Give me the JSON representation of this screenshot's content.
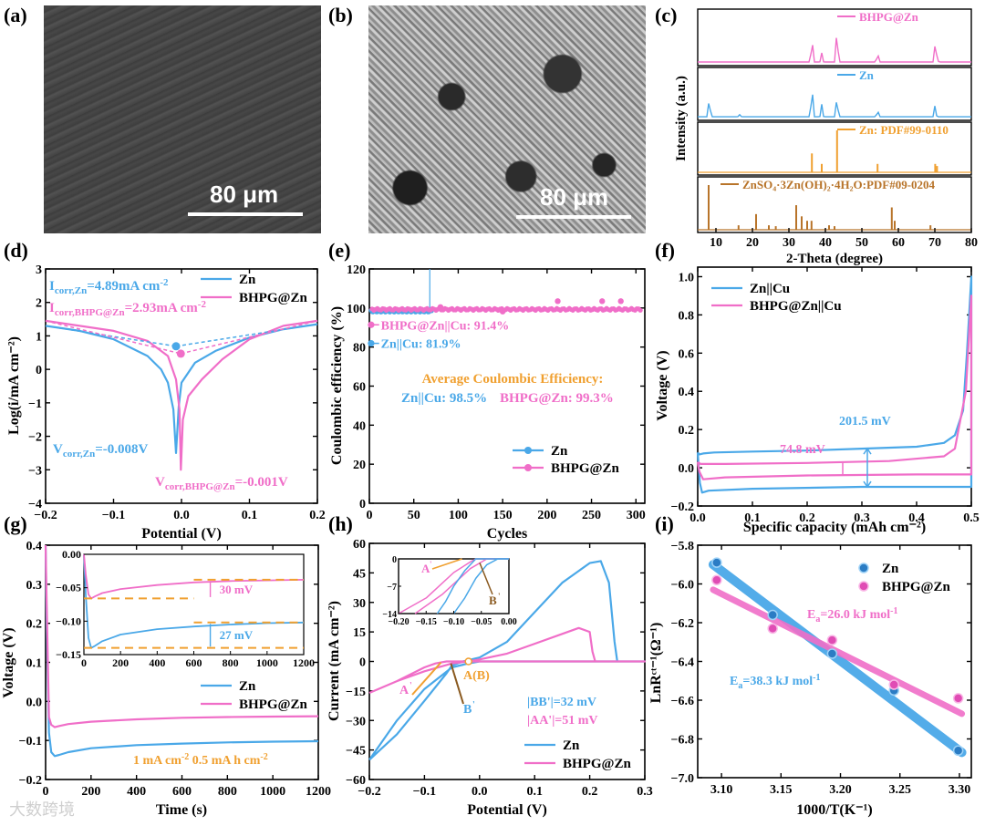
{
  "panels": {
    "a": "(a)",
    "b": "(b)",
    "c": "(c)",
    "d": "(d)",
    "e": "(e)",
    "f": "(f)",
    "g": "(g)",
    "h": "(h)",
    "i": "(i)"
  },
  "sem": {
    "scale_a": "80 μm",
    "scale_b": "80 μm"
  },
  "watermark": "大数跨境",
  "colors": {
    "zn": "#4aa8e8",
    "bhpg": "#f06ec8",
    "orange": "#f0a030",
    "brown": "#b8742a"
  },
  "chart_data": [
    {
      "id": "c",
      "type": "line",
      "xlabel": "2-Theta (degree)",
      "ylabel": "Intensity (a.u.)",
      "xlim": [
        5,
        80
      ],
      "xticks": [
        10,
        20,
        30,
        40,
        50,
        60,
        70,
        80
      ],
      "series": [
        {
          "name": "BHPG@Zn",
          "peaks": [
            [
              36.3,
              0.7
            ],
            [
              39.0,
              0.2
            ],
            [
              43.2,
              1.0
            ],
            [
              54.3,
              0.25
            ],
            [
              70.1,
              0.4
            ],
            [
              70.6,
              0.15
            ]
          ]
        },
        {
          "name": "Zn",
          "peaks": [
            [
              8.2,
              0.6
            ],
            [
              16.5,
              0.05
            ],
            [
              36.3,
              1.0
            ],
            [
              39.0,
              0.3
            ],
            [
              43.2,
              0.65
            ],
            [
              54.3,
              0.2
            ],
            [
              70.1,
              0.3
            ]
          ]
        },
        {
          "name": "Zn: PDF#99-0110",
          "peaks": [
            [
              36.3,
              0.45
            ],
            [
              39.0,
              0.2
            ],
            [
              43.2,
              1.0
            ],
            [
              54.3,
              0.2
            ],
            [
              70.1,
              0.2
            ],
            [
              70.6,
              0.15
            ]
          ]
        },
        {
          "name": "ZnSO₄·3Zn(OH)₂·4H₂O:PDF#09-0204",
          "peaks": [
            [
              8.0,
              1.0
            ],
            [
              16.2,
              0.1
            ],
            [
              21.0,
              0.35
            ],
            [
              24.5,
              0.1
            ],
            [
              26.4,
              0.08
            ],
            [
              32.0,
              0.55
            ],
            [
              33.5,
              0.3
            ],
            [
              35.0,
              0.2
            ],
            [
              36.2,
              0.2
            ],
            [
              41.0,
              0.1
            ],
            [
              42.5,
              0.08
            ],
            [
              58.2,
              0.5
            ],
            [
              59.0,
              0.2
            ],
            [
              68.8,
              0.1
            ]
          ]
        }
      ]
    },
    {
      "id": "d",
      "type": "line",
      "xlabel": "Potential (V)",
      "ylabel": "Log(i/mA cm⁻²)",
      "xlim": [
        -0.2,
        0.2
      ],
      "ylim": [
        -4,
        3
      ],
      "xticks": [
        -0.2,
        -0.1,
        0.0,
        0.1,
        0.2
      ],
      "yticks": [
        -4,
        -3,
        -2,
        -1,
        0,
        1,
        2,
        3
      ],
      "legend": [
        "Zn",
        "BHPG@Zn"
      ],
      "legend_placement": "top-right",
      "annotations": [
        "I",
        "corr,Zn",
        "=4.89mA cm",
        "-2",
        "I",
        "corr,BHPG@Zn",
        "=2.93mA cm",
        "-2",
        "V",
        "corr,Zn",
        "=-0.008V",
        "V",
        "corr,BHPG@Zn",
        "=-0.001V"
      ],
      "series": [
        {
          "name": "Zn",
          "x": [
            -0.2,
            -0.15,
            -0.1,
            -0.05,
            -0.03,
            -0.02,
            -0.012,
            -0.008,
            -0.004,
            0.0,
            0.02,
            0.05,
            0.1,
            0.15,
            0.2
          ],
          "y": [
            1.3,
            1.15,
            0.9,
            0.4,
            0.0,
            -0.4,
            -1.2,
            -2.5,
            -1.1,
            -0.4,
            0.2,
            0.55,
            0.95,
            1.2,
            1.35
          ]
        },
        {
          "name": "BHPG@Zn",
          "x": [
            -0.2,
            -0.15,
            -0.1,
            -0.05,
            -0.02,
            -0.008,
            -0.003,
            -0.001,
            0.002,
            0.01,
            0.03,
            0.06,
            0.1,
            0.15,
            0.2
          ],
          "y": [
            1.45,
            1.3,
            1.15,
            0.85,
            0.4,
            -0.3,
            -1.2,
            -3.0,
            -1.5,
            -0.8,
            -0.3,
            0.3,
            0.9,
            1.3,
            1.45
          ]
        }
      ],
      "points": [
        [
          -0.008,
          0.69
        ],
        [
          -0.001,
          0.47
        ]
      ]
    },
    {
      "id": "e",
      "type": "scatter",
      "xlabel": "Cycles",
      "ylabel": "Coulombic efficiency (%)",
      "xlim": [
        0,
        310
      ],
      "ylim": [
        0,
        120
      ],
      "xticks": [
        0,
        50,
        100,
        150,
        200,
        250,
        300
      ],
      "yticks": [
        0,
        20,
        40,
        60,
        80,
        100,
        120
      ],
      "legend": [
        "Zn",
        "BHPG@Zn"
      ],
      "legend_placement": "bottom-right",
      "annotations": [
        "BHPG@Zn||Cu: 91.4%",
        "Zn||Cu: 81.9%",
        "Average Coulombic Efficiency:",
        "Zn||Cu: 98.5%",
        "BHPG@Zn: 99.3%"
      ],
      "series": [
        {
          "name": "Zn",
          "x_range": [
            1,
            70
          ],
          "value": 98.5,
          "first": 81.9,
          "spike": [
            68,
            120
          ]
        },
        {
          "name": "BHPG@Zn",
          "x_range": [
            1,
            305
          ],
          "value": 99.3,
          "first": 91.4
        }
      ]
    },
    {
      "id": "f",
      "type": "line",
      "xlabel": "Specific capacity (mAh cm⁻²)",
      "ylabel": "Voltage (V)",
      "xlim": [
        0,
        0.5
      ],
      "ylim": [
        -0.2,
        1.05
      ],
      "xticks": [
        0.0,
        0.1,
        0.2,
        0.3,
        0.4,
        0.5
      ],
      "yticks": [
        -0.2,
        0.0,
        0.2,
        0.4,
        0.6,
        0.8,
        1.0
      ],
      "legend": [
        "Zn||Cu",
        "BHPG@Zn||Cu"
      ],
      "legend_placement": "top-left",
      "annotations": [
        "201.5 mV",
        "74.8 mV"
      ],
      "series": [
        {
          "name": "Zn||Cu",
          "x": [
            0,
            0.003,
            0.01,
            0.03,
            0.1,
            0.2,
            0.3,
            0.4,
            0.45,
            0.47,
            0.485,
            0.492,
            0.497,
            0.5,
            0.5,
            0.45,
            0.3,
            0.1,
            0.02,
            0.008,
            0.004,
            0.0
          ],
          "y": [
            0.08,
            0.07,
            0.075,
            0.08,
            0.085,
            0.09,
            0.1,
            0.11,
            0.13,
            0.17,
            0.3,
            0.6,
            0.85,
            1.0,
            -0.1,
            -0.1,
            -0.1,
            -0.11,
            -0.12,
            -0.13,
            -0.08,
            0.08
          ]
        },
        {
          "name": "BHPG@Zn||Cu",
          "x": [
            0,
            0.005,
            0.05,
            0.2,
            0.35,
            0.45,
            0.47,
            0.49,
            0.5,
            0.5,
            0.4,
            0.2,
            0.05,
            0.01,
            0.003,
            0.0
          ],
          "y": [
            0.03,
            0.02,
            0.02,
            0.025,
            0.035,
            0.06,
            0.1,
            0.4,
            0.9,
            -0.035,
            -0.035,
            -0.04,
            -0.05,
            -0.06,
            -0.02,
            0.03
          ]
        }
      ]
    },
    {
      "id": "g",
      "type": "line",
      "xlabel": "Time (s)",
      "ylabel": "Voltage (V)",
      "xlim": [
        0,
        1200
      ],
      "ylim": [
        -0.2,
        0.4
      ],
      "xticks": [
        0,
        200,
        400,
        600,
        800,
        1000,
        1200
      ],
      "yticks": [
        -0.2,
        -0.1,
        0.0,
        0.1,
        0.2,
        0.3,
        0.4
      ],
      "legend": [
        "Zn",
        "BHPG@Zn"
      ],
      "legend_placement": "center-right",
      "annotations": [
        "1 mA cm",
        "-2",
        "0.5 mA h cm",
        "-2",
        "30 mV",
        "27 mV"
      ],
      "series": [
        {
          "name": "Zn",
          "x": [
            0,
            5,
            15,
            25,
            40,
            60,
            100,
            200,
            400,
            600,
            800,
            1000,
            1200
          ],
          "y": [
            0.4,
            0.2,
            -0.08,
            -0.13,
            -0.14,
            -0.137,
            -0.13,
            -0.12,
            -0.112,
            -0.108,
            -0.105,
            -0.103,
            -0.102
          ]
        },
        {
          "name": "BHPG@Zn",
          "x": [
            0,
            5,
            15,
            25,
            40,
            60,
            100,
            200,
            400,
            600,
            800,
            1000,
            1200
          ],
          "y": [
            0.4,
            0.25,
            -0.04,
            -0.06,
            -0.066,
            -0.063,
            -0.058,
            -0.052,
            -0.046,
            -0.042,
            -0.04,
            -0.039,
            -0.038
          ]
        }
      ],
      "inset": {
        "xlim": [
          0,
          1200
        ],
        "ylim": [
          -0.15,
          0.0
        ],
        "xticks": [
          0,
          200,
          400,
          600,
          800,
          1000,
          1200
        ],
        "yticks": [
          0.0,
          -0.05,
          -0.1,
          -0.15
        ]
      }
    },
    {
      "id": "h",
      "type": "line",
      "xlabel": "Potential (V)",
      "ylabel": "Current (mA cm⁻²)",
      "xlim": [
        -0.2,
        0.3
      ],
      "ylim": [
        -60,
        60
      ],
      "xticks": [
        -0.2,
        -0.1,
        0.0,
        0.1,
        0.2,
        0.3
      ],
      "yticks": [
        -60,
        -45,
        -30,
        -15,
        0,
        15,
        30,
        45,
        60
      ],
      "legend": [
        "Zn",
        "BHPG@Zn"
      ],
      "legend_placement": "bottom-right",
      "annotations": [
        "A",
        "'",
        "A(B)",
        "B",
        "'",
        "|BB'|=32 mV",
        "|AA'|=51 mV"
      ],
      "series": [
        {
          "name": "Zn",
          "x": [
            -0.2,
            -0.15,
            -0.1,
            -0.06,
            -0.05,
            -0.03,
            0.0,
            0.05,
            0.1,
            0.15,
            0.2,
            0.22,
            0.235,
            0.245,
            0.25,
            0.3,
            0.25,
            0.0,
            -0.02,
            -0.05,
            -0.1,
            -0.15,
            -0.2
          ],
          "y": [
            -50,
            -37,
            -20,
            -6,
            -2,
            0,
            2,
            10,
            25,
            40,
            50,
            51,
            40,
            10,
            0,
            0,
            0,
            0,
            -1,
            -3,
            -14,
            -30,
            -50
          ]
        },
        {
          "name": "BHPG@Zn",
          "x": [
            -0.2,
            -0.15,
            -0.1,
            -0.08,
            -0.06,
            -0.05,
            -0.02,
            0.0,
            0.05,
            0.1,
            0.15,
            0.18,
            0.2,
            0.205,
            0.21,
            0.3,
            0.21,
            0.0,
            -0.02,
            -0.05,
            -0.1,
            -0.15,
            -0.2
          ],
          "y": [
            -16,
            -10,
            -3,
            -1,
            0,
            0,
            0,
            1,
            4,
            9,
            14,
            17,
            15,
            5,
            0,
            0,
            0,
            0,
            0,
            -1,
            -5,
            -10,
            -16
          ]
        }
      ],
      "inset": {
        "xlim": [
          -0.2,
          0.0
        ],
        "ylim": [
          -14,
          0
        ],
        "xticks": [
          -0.2,
          -0.15,
          -0.1,
          -0.05,
          0.0
        ],
        "yticks": [
          0,
          -7,
          -14
        ],
        "labels": [
          "A",
          "'",
          "B",
          "'"
        ]
      }
    },
    {
      "id": "i",
      "type": "scatter",
      "xlabel": "1000/T(K⁻¹)",
      "ylabel": "LnRᶜᵗ⁻¹(Ω⁻¹)",
      "xlim": [
        3.08,
        3.31
      ],
      "ylim": [
        -7.0,
        -5.8
      ],
      "xticks": [
        3.1,
        3.15,
        3.2,
        3.25,
        3.3
      ],
      "yticks": [
        -5.8,
        -6.0,
        -6.2,
        -6.4,
        -6.6,
        -6.8,
        -7.0
      ],
      "legend": [
        "Zn",
        "BHPG@Zn"
      ],
      "legend_placement": "top-right",
      "annotations": [
        "E",
        "a",
        "=26.0 kJ mol",
        "-1",
        "E",
        "a",
        "=38.3 kJ mol",
        "-1"
      ],
      "series": [
        {
          "name": "Zn",
          "x": [
            3.096,
            3.143,
            3.193,
            3.245,
            3.299
          ],
          "y": [
            -5.89,
            -6.16,
            -6.36,
            -6.55,
            -6.86
          ],
          "fit": [
            [
              3.093,
              -5.9
            ],
            [
              3.302,
              -6.87
            ]
          ]
        },
        {
          "name": "BHPG@Zn",
          "x": [
            3.096,
            3.143,
            3.193,
            3.245,
            3.299
          ],
          "y": [
            -5.98,
            -6.23,
            -6.29,
            -6.52,
            -6.59
          ],
          "fit": [
            [
              3.093,
              -6.03
            ],
            [
              3.302,
              -6.67
            ]
          ]
        }
      ]
    }
  ]
}
